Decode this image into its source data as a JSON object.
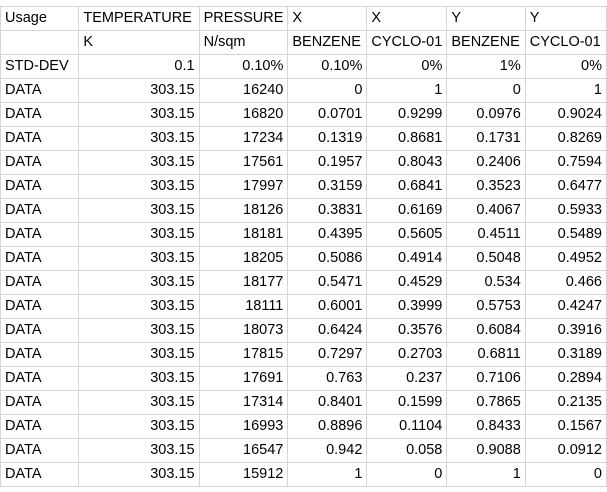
{
  "table": {
    "rows": [
      [
        "Usage",
        "TEMPERATURE",
        "PRESSURE",
        "X",
        "X",
        "Y",
        "Y"
      ],
      [
        "",
        "K",
        "N/sqm",
        "BENZENE",
        "CYCLO-01",
        "BENZENE",
        "CYCLO-01"
      ],
      [
        "STD-DEV",
        "0.1",
        "0.10%",
        "0.10%",
        "0%",
        "1%",
        "0%"
      ],
      [
        "DATA",
        "303.15",
        "16240",
        "0",
        "1",
        "0",
        "1"
      ],
      [
        "DATA",
        "303.15",
        "16820",
        "0.0701",
        "0.9299",
        "0.0976",
        "0.9024"
      ],
      [
        "DATA",
        "303.15",
        "17234",
        "0.1319",
        "0.8681",
        "0.1731",
        "0.8269"
      ],
      [
        "DATA",
        "303.15",
        "17561",
        "0.1957",
        "0.8043",
        "0.2406",
        "0.7594"
      ],
      [
        "DATA",
        "303.15",
        "17997",
        "0.3159",
        "0.6841",
        "0.3523",
        "0.6477"
      ],
      [
        "DATA",
        "303.15",
        "18126",
        "0.3831",
        "0.6169",
        "0.4067",
        "0.5933"
      ],
      [
        "DATA",
        "303.15",
        "18181",
        "0.4395",
        "0.5605",
        "0.4511",
        "0.5489"
      ],
      [
        "DATA",
        "303.15",
        "18205",
        "0.5086",
        "0.4914",
        "0.5048",
        "0.4952"
      ],
      [
        "DATA",
        "303.15",
        "18177",
        "0.5471",
        "0.4529",
        "0.534",
        "0.466"
      ],
      [
        "DATA",
        "303.15",
        "18111",
        "0.6001",
        "0.3999",
        "0.5753",
        "0.4247"
      ],
      [
        "DATA",
        "303.15",
        "18073",
        "0.6424",
        "0.3576",
        "0.6084",
        "0.3916"
      ],
      [
        "DATA",
        "303.15",
        "17815",
        "0.7297",
        "0.2703",
        "0.6811",
        "0.3189"
      ],
      [
        "DATA",
        "303.15",
        "17691",
        "0.763",
        "0.237",
        "0.7106",
        "0.2894"
      ],
      [
        "DATA",
        "303.15",
        "17314",
        "0.8401",
        "0.1599",
        "0.7865",
        "0.2135"
      ],
      [
        "DATA",
        "303.15",
        "16993",
        "0.8896",
        "0.1104",
        "0.8433",
        "0.1567"
      ],
      [
        "DATA",
        "303.15",
        "16547",
        "0.942",
        "0.058",
        "0.9088",
        "0.0912"
      ],
      [
        "DATA",
        "303.15",
        "15912",
        "1",
        "0",
        "1",
        "0"
      ]
    ]
  }
}
